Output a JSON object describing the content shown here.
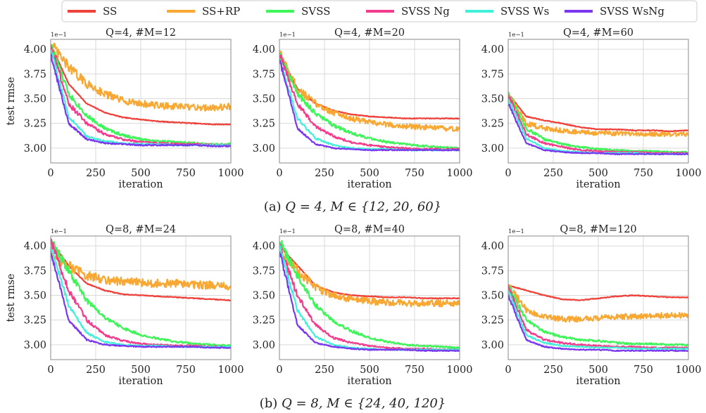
{
  "legend": {
    "items": [
      {
        "label": "SS",
        "color": "#f0403a"
      },
      {
        "label": "SS+RP",
        "color": "#f8a832"
      },
      {
        "label": "SVSS",
        "color": "#3cf556"
      },
      {
        "label": "SVSS Ng",
        "color": "#f43c8c"
      },
      {
        "label": "SVSS Ws",
        "color": "#40f0d8"
      },
      {
        "label": "SVSS WsNg",
        "color": "#7a36f0"
      }
    ]
  },
  "captions": [
    {
      "prefix": "(a) ",
      "math": "Q = 4, M ∈ {12, 20, 60}"
    },
    {
      "prefix": "(b) ",
      "math": "Q = 8, M ∈ {24, 40, 120}"
    }
  ],
  "chart_data": [
    {
      "type": "line",
      "title": "Q=4, #M=12",
      "xlabel": "iteration",
      "ylabel": "test rmse",
      "offset_text": "1e−1",
      "xlim": [
        0,
        1000
      ],
      "ylim": [
        2.85,
        4.1
      ],
      "xticks": [
        "0",
        "250",
        "500",
        "750",
        "1000"
      ],
      "yticks": [
        "3.00",
        "3.25",
        "3.50",
        "3.75",
        "4.00"
      ],
      "grid": true,
      "x": [
        0,
        100,
        200,
        300,
        400,
        500,
        600,
        700,
        800,
        900,
        1000
      ],
      "series": [
        {
          "name": "SS",
          "values": [
            4.05,
            3.65,
            3.45,
            3.36,
            3.31,
            3.29,
            3.27,
            3.26,
            3.25,
            3.24,
            3.24
          ]
        },
        {
          "name": "SS+RP",
          "values": [
            4.05,
            3.82,
            3.65,
            3.55,
            3.48,
            3.45,
            3.43,
            3.42,
            3.41,
            3.41,
            3.42
          ]
        },
        {
          "name": "SVSS",
          "values": [
            4.05,
            3.55,
            3.33,
            3.2,
            3.13,
            3.09,
            3.07,
            3.06,
            3.05,
            3.04,
            3.04
          ]
        },
        {
          "name": "SVSS Ng",
          "values": [
            4.05,
            3.45,
            3.25,
            3.14,
            3.09,
            3.06,
            3.05,
            3.04,
            3.04,
            3.03,
            3.03
          ]
        },
        {
          "name": "SVSS Ws",
          "values": [
            4.0,
            3.32,
            3.12,
            3.07,
            3.05,
            3.04,
            3.04,
            3.03,
            3.03,
            3.03,
            3.03
          ]
        },
        {
          "name": "SVSS WsNg",
          "values": [
            3.95,
            3.25,
            3.09,
            3.05,
            3.04,
            3.03,
            3.03,
            3.03,
            3.03,
            3.02,
            3.02
          ]
        }
      ]
    },
    {
      "type": "line",
      "title": "Q=4, #M=20",
      "xlabel": "iteration",
      "ylabel": "",
      "offset_text": "1e−1",
      "xlim": [
        0,
        1000
      ],
      "ylim": [
        2.85,
        4.1
      ],
      "xticks": [
        "0",
        "250",
        "500",
        "750",
        "1000"
      ],
      "yticks": [
        "3.00",
        "3.25",
        "3.50",
        "3.75",
        "4.00"
      ],
      "grid": true,
      "x": [
        0,
        100,
        200,
        300,
        400,
        500,
        600,
        700,
        800,
        900,
        1000
      ],
      "series": [
        {
          "name": "SS",
          "values": [
            3.95,
            3.6,
            3.45,
            3.38,
            3.34,
            3.32,
            3.31,
            3.3,
            3.3,
            3.3,
            3.3
          ]
        },
        {
          "name": "SS+RP",
          "values": [
            3.95,
            3.6,
            3.45,
            3.36,
            3.3,
            3.26,
            3.24,
            3.22,
            3.21,
            3.2,
            3.19
          ]
        },
        {
          "name": "SVSS",
          "values": [
            3.95,
            3.55,
            3.35,
            3.23,
            3.15,
            3.1,
            3.06,
            3.04,
            3.02,
            3.01,
            3.0
          ]
        },
        {
          "name": "SVSS Ng",
          "values": [
            3.95,
            3.45,
            3.22,
            3.12,
            3.06,
            3.03,
            3.01,
            3.0,
            2.99,
            2.99,
            2.99
          ]
        },
        {
          "name": "SVSS Ws",
          "values": [
            3.9,
            3.3,
            3.1,
            3.03,
            3.0,
            2.99,
            2.99,
            2.98,
            2.98,
            2.98,
            2.98
          ]
        },
        {
          "name": "SVSS WsNg",
          "values": [
            3.9,
            3.2,
            3.04,
            3.0,
            2.99,
            2.98,
            2.98,
            2.98,
            2.98,
            2.98,
            2.98
          ]
        }
      ]
    },
    {
      "type": "line",
      "title": "Q=4, #M=60",
      "xlabel": "iteration",
      "ylabel": "",
      "offset_text": "1e−1",
      "xlim": [
        0,
        1000
      ],
      "ylim": [
        2.85,
        4.1
      ],
      "xticks": [
        "0",
        "250",
        "500",
        "750",
        "1000"
      ],
      "yticks": [
        "3.00",
        "3.25",
        "3.50",
        "3.75",
        "4.00"
      ],
      "grid": true,
      "x": [
        0,
        100,
        200,
        300,
        400,
        500,
        600,
        700,
        800,
        900,
        1000
      ],
      "series": [
        {
          "name": "SS",
          "values": [
            3.55,
            3.32,
            3.28,
            3.25,
            3.21,
            3.19,
            3.19,
            3.18,
            3.18,
            3.17,
            3.18
          ]
        },
        {
          "name": "SS+RP",
          "values": [
            3.55,
            3.25,
            3.2,
            3.18,
            3.16,
            3.15,
            3.15,
            3.14,
            3.14,
            3.14,
            3.14
          ]
        },
        {
          "name": "SVSS",
          "values": [
            3.55,
            3.2,
            3.09,
            3.04,
            3.01,
            2.99,
            2.98,
            2.97,
            2.97,
            2.96,
            2.96
          ]
        },
        {
          "name": "SVSS Ng",
          "values": [
            3.55,
            3.14,
            3.05,
            3.01,
            2.98,
            2.97,
            2.96,
            2.96,
            2.95,
            2.95,
            2.95
          ]
        },
        {
          "name": "SVSS Ws",
          "values": [
            3.5,
            3.1,
            3.0,
            2.97,
            2.96,
            2.95,
            2.95,
            2.95,
            2.94,
            2.94,
            2.94
          ]
        },
        {
          "name": "SVSS WsNg",
          "values": [
            3.45,
            3.05,
            2.98,
            2.96,
            2.95,
            2.95,
            2.94,
            2.94,
            2.94,
            2.94,
            2.94
          ]
        }
      ]
    },
    {
      "type": "line",
      "title": "Q=8, #M=24",
      "xlabel": "iteration",
      "ylabel": "test rmse",
      "offset_text": "1e−1",
      "xlim": [
        0,
        1000
      ],
      "ylim": [
        2.85,
        4.1
      ],
      "xticks": [
        "0",
        "250",
        "500",
        "750",
        "1000"
      ],
      "yticks": [
        "3.00",
        "3.25",
        "3.50",
        "3.75",
        "4.00"
      ],
      "grid": true,
      "x": [
        0,
        100,
        200,
        300,
        400,
        500,
        600,
        700,
        800,
        900,
        1000
      ],
      "series": [
        {
          "name": "SS",
          "values": [
            4.05,
            3.8,
            3.62,
            3.55,
            3.51,
            3.5,
            3.49,
            3.48,
            3.47,
            3.46,
            3.45
          ]
        },
        {
          "name": "SS+RP",
          "values": [
            3.9,
            3.8,
            3.7,
            3.66,
            3.64,
            3.63,
            3.62,
            3.62,
            3.61,
            3.6,
            3.58
          ]
        },
        {
          "name": "SVSS",
          "values": [
            4.05,
            3.75,
            3.45,
            3.28,
            3.17,
            3.1,
            3.06,
            3.03,
            3.01,
            3.0,
            2.99
          ]
        },
        {
          "name": "SVSS Ng",
          "values": [
            4.05,
            3.55,
            3.25,
            3.1,
            3.04,
            3.01,
            3.0,
            2.99,
            2.99,
            2.98,
            2.98
          ]
        },
        {
          "name": "SVSS Ws",
          "values": [
            4.0,
            3.4,
            3.12,
            3.03,
            3.0,
            2.99,
            2.99,
            2.98,
            2.98,
            2.98,
            2.98
          ]
        },
        {
          "name": "SVSS WsNg",
          "values": [
            3.95,
            3.25,
            3.05,
            3.0,
            2.99,
            2.98,
            2.98,
            2.98,
            2.98,
            2.97,
            2.97
          ]
        }
      ]
    },
    {
      "type": "line",
      "title": "Q=8, #M=40",
      "xlabel": "iteration",
      "ylabel": "",
      "offset_text": "1e−1",
      "xlim": [
        0,
        1000
      ],
      "ylim": [
        2.85,
        4.1
      ],
      "xticks": [
        "0",
        "250",
        "500",
        "750",
        "1000"
      ],
      "yticks": [
        "3.00",
        "3.25",
        "3.50",
        "3.75",
        "4.00"
      ],
      "grid": true,
      "x": [
        0,
        100,
        200,
        300,
        400,
        500,
        600,
        700,
        800,
        900,
        1000
      ],
      "series": [
        {
          "name": "SS",
          "values": [
            4.0,
            3.8,
            3.6,
            3.53,
            3.5,
            3.49,
            3.48,
            3.48,
            3.47,
            3.47,
            3.47
          ]
        },
        {
          "name": "SS+RP",
          "values": [
            3.95,
            3.75,
            3.58,
            3.5,
            3.46,
            3.44,
            3.43,
            3.42,
            3.42,
            3.42,
            3.42
          ]
        },
        {
          "name": "SVSS",
          "values": [
            4.05,
            3.7,
            3.4,
            3.24,
            3.14,
            3.07,
            3.03,
            3.0,
            2.99,
            2.98,
            2.97
          ]
        },
        {
          "name": "SVSS Ng",
          "values": [
            4.0,
            3.5,
            3.2,
            3.07,
            3.02,
            2.99,
            2.97,
            2.96,
            2.96,
            2.95,
            2.95
          ]
        },
        {
          "name": "SVSS Ws",
          "values": [
            4.0,
            3.35,
            3.08,
            3.0,
            2.97,
            2.96,
            2.95,
            2.95,
            2.95,
            2.95,
            2.95
          ]
        },
        {
          "name": "SVSS WsNg",
          "values": [
            3.95,
            3.2,
            3.02,
            2.98,
            2.96,
            2.95,
            2.95,
            2.95,
            2.94,
            2.94,
            2.94
          ]
        }
      ]
    },
    {
      "type": "line",
      "title": "Q=8, #M=120",
      "xlabel": "iteration",
      "ylabel": "",
      "offset_text": "1e−1",
      "xlim": [
        0,
        1000
      ],
      "ylim": [
        2.85,
        4.1
      ],
      "xticks": [
        "0",
        "250",
        "500",
        "750",
        "1000"
      ],
      "yticks": [
        "3.00",
        "3.25",
        "3.50",
        "3.75",
        "4.00"
      ],
      "grid": true,
      "x": [
        0,
        100,
        200,
        300,
        400,
        500,
        600,
        700,
        800,
        900,
        1000
      ],
      "series": [
        {
          "name": "SS",
          "values": [
            3.6,
            3.55,
            3.5,
            3.46,
            3.45,
            3.47,
            3.49,
            3.5,
            3.49,
            3.48,
            3.48
          ]
        },
        {
          "name": "SS+RP",
          "values": [
            3.6,
            3.35,
            3.28,
            3.26,
            3.26,
            3.27,
            3.28,
            3.29,
            3.29,
            3.3,
            3.3
          ]
        },
        {
          "name": "SVSS",
          "values": [
            3.6,
            3.25,
            3.13,
            3.08,
            3.05,
            3.04,
            3.02,
            3.01,
            3.01,
            3.0,
            3.0
          ]
        },
        {
          "name": "SVSS Ng",
          "values": [
            3.6,
            3.15,
            3.05,
            3.02,
            3.0,
            2.99,
            2.98,
            2.98,
            2.97,
            2.97,
            2.97
          ]
        },
        {
          "name": "SVSS Ws",
          "values": [
            3.55,
            3.1,
            3.02,
            2.99,
            2.98,
            2.97,
            2.97,
            2.96,
            2.96,
            2.96,
            2.96
          ]
        },
        {
          "name": "SVSS WsNg",
          "values": [
            3.5,
            3.05,
            2.98,
            2.96,
            2.95,
            2.95,
            2.94,
            2.94,
            2.94,
            2.94,
            2.94
          ]
        }
      ]
    }
  ]
}
